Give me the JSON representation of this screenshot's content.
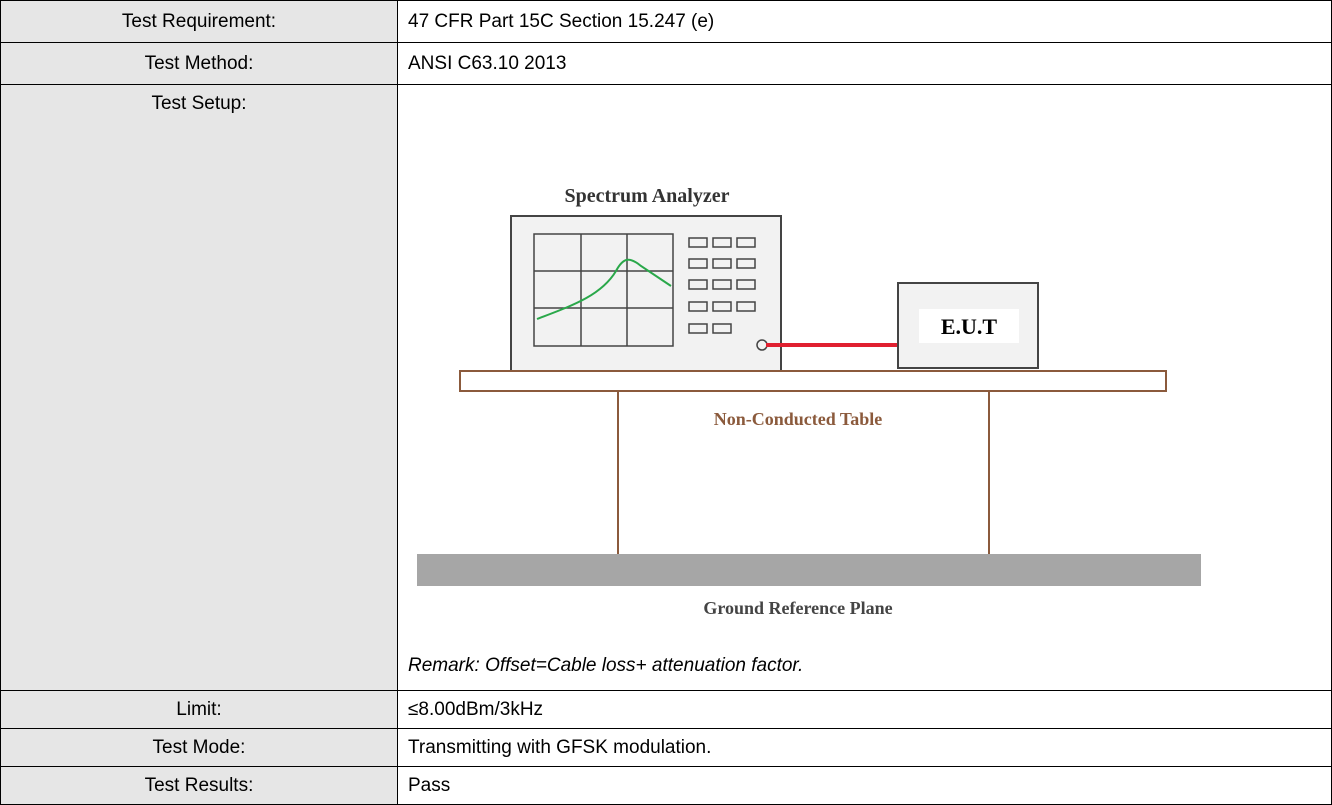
{
  "table": {
    "rows": [
      [
        "Test Requirement:",
        "47 CFR Part 15C Section 15.247 (e)"
      ],
      [
        "Test Method:",
        "ANSI C63.10 2013"
      ],
      [
        "Test Setup:",
        ""
      ],
      [
        "Limit:",
        "≤8.00dBm/3kHz"
      ],
      [
        "Test Mode:",
        "Transmitting with GFSK modulation."
      ],
      [
        "Test Results:",
        "Pass"
      ]
    ]
  },
  "diagram": {
    "analyzer": "Spectrum Analyzer",
    "eut": "E.U.T",
    "table": "Non-Conducted Table",
    "ground": "Ground Reference Plane"
  },
  "remark": "Remark: Offset=Cable loss+ attenuation factor."
}
